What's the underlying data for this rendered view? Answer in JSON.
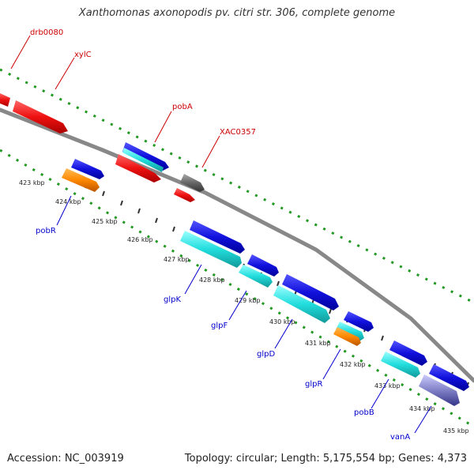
{
  "title": "Xanthomonas axonopodis pv. citri str. 306, complete genome",
  "footer": {
    "accession": "Accession: NC_003919",
    "summary": "Topology: circular; Length: 5,175,554 bp; Genes: 4,373"
  },
  "colors": {
    "red": "#ee1111",
    "blue": "#1111dd",
    "cyan": "#22dddd",
    "orange": "#ff8800",
    "gray": "#666666",
    "navy": "#444499",
    "backbone": "#888888",
    "gc_dots": "#229922",
    "label_top": "#cc0000",
    "label_bottom": "#0000cc"
  },
  "ticks": [
    "423 kbp",
    "424 kbp",
    "425 kbp",
    "426 kbp",
    "427 kbp",
    "428 kbp",
    "429 kbp",
    "430 kbp",
    "431 kbp",
    "432 kbp",
    "433 kbp",
    "434 kbp",
    "435 kbp"
  ],
  "top_labels": [
    "drb0080",
    "xylC",
    "pobA",
    "XAC0357"
  ],
  "bottom_labels": [
    "pobR",
    "glpK",
    "glpF",
    "glpD",
    "glpR",
    "pobB",
    "vanA"
  ]
}
